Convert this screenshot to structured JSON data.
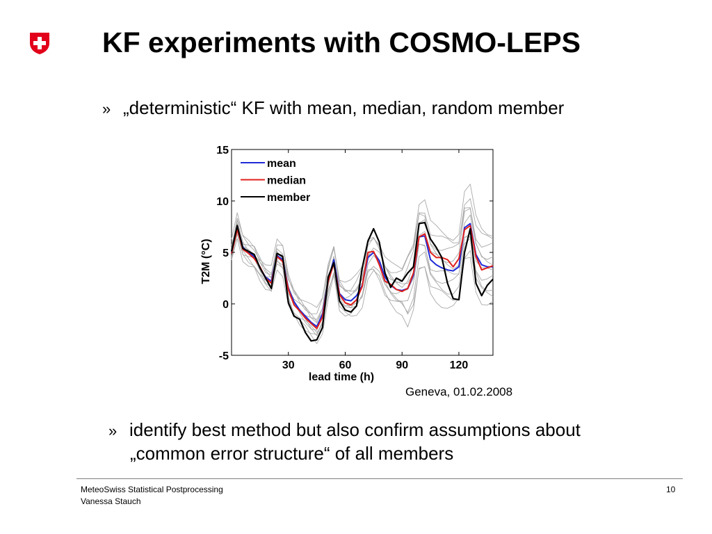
{
  "slide": {
    "title": "KF experiments with COSMO-LEPS",
    "bullet_mark": "»",
    "bullet1": "„deterministic“ KF with mean, median, random member",
    "bullet2_line1": "identify best method but also confirm assumptions about",
    "bullet2_line2": "„common error structure“ of all members",
    "caption": "Geneva, 01.02.2008",
    "footer_line1": "MeteoSwiss Statistical Postprocessing",
    "footer_line2": "Vanessa Stauch",
    "page_number": "10",
    "logo_icon": "swiss-cross-shield-icon",
    "logo_color": "#e2001a"
  },
  "chart_data": {
    "type": "line",
    "xlabel": "lead time (h)",
    "ylabel": "T2M (°C)",
    "xlim": [
      0,
      138
    ],
    "ylim": [
      -5,
      15
    ],
    "xticks": [
      30,
      60,
      90,
      120
    ],
    "yticks": [
      -5,
      0,
      5,
      10,
      15
    ],
    "grid": false,
    "legend_position": "top-left",
    "x": [
      0,
      3,
      6,
      9,
      12,
      15,
      18,
      21,
      24,
      27,
      30,
      33,
      36,
      39,
      42,
      45,
      48,
      51,
      54,
      57,
      60,
      63,
      66,
      69,
      72,
      75,
      78,
      81,
      84,
      87,
      90,
      93,
      96,
      99,
      102,
      105,
      108,
      111,
      114,
      117,
      120,
      123,
      126,
      129,
      132,
      135,
      138
    ],
    "series": [
      {
        "name": "mean",
        "color": "#1f2bd6",
        "values": [
          5.0,
          7.5,
          5.5,
          5.0,
          4.6,
          3.5,
          2.6,
          2.2,
          4.7,
          4.3,
          1.5,
          0.2,
          -0.6,
          -1.2,
          -1.8,
          -2.2,
          -1.0,
          2.3,
          4.3,
          1.0,
          0.4,
          0.3,
          0.8,
          1.8,
          4.5,
          5.0,
          4.2,
          2.6,
          1.8,
          1.4,
          1.3,
          1.5,
          2.8,
          6.5,
          6.6,
          4.3,
          3.8,
          3.5,
          3.3,
          3.2,
          3.6,
          7.4,
          7.8,
          4.8,
          3.8,
          3.6,
          3.6
        ]
      },
      {
        "name": "median",
        "color": "#e0201b",
        "values": [
          4.9,
          7.2,
          5.3,
          4.9,
          4.4,
          3.6,
          2.5,
          2.0,
          4.6,
          4.1,
          1.4,
          -0.1,
          -0.7,
          -1.4,
          -1.9,
          -2.4,
          -1.3,
          2.2,
          3.9,
          0.9,
          0.1,
          -0.1,
          0.4,
          1.7,
          5.0,
          5.1,
          3.8,
          2.2,
          1.9,
          1.4,
          1.2,
          1.5,
          3.0,
          6.5,
          6.8,
          5.0,
          4.5,
          4.5,
          4.3,
          3.6,
          4.4,
          7.2,
          7.6,
          4.6,
          3.3,
          3.5,
          3.7
        ]
      },
      {
        "name": "member",
        "color": "#000000",
        "values": [
          5.1,
          7.6,
          5.4,
          5.1,
          4.8,
          3.5,
          2.5,
          1.5,
          4.9,
          4.6,
          0.1,
          -1.2,
          -1.5,
          -2.8,
          -3.6,
          -3.5,
          -2.3,
          2.6,
          4.0,
          0.3,
          -0.6,
          -0.8,
          -0.2,
          3.5,
          6.1,
          7.3,
          6.0,
          3.0,
          1.6,
          2.5,
          2.2,
          3.0,
          3.6,
          7.8,
          7.9,
          6.3,
          5.5,
          4.5,
          2.0,
          0.5,
          0.4,
          5.0,
          7.3,
          2.0,
          0.8,
          1.8,
          2.4
        ]
      }
    ]
  }
}
